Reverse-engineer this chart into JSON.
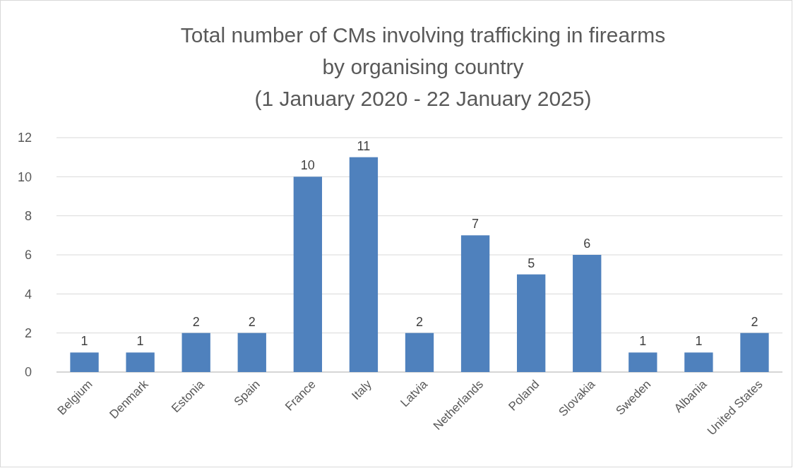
{
  "chart_data": {
    "type": "bar",
    "title": "Total number of CMs involving trafficking in firearms by organising country",
    "subtitle": "(1 January 2020 - 22 January 2025)",
    "categories": [
      "Belgium",
      "Denmark",
      "Estonia",
      "Spain",
      "France",
      "Italy",
      "Latvia",
      "Netherlands",
      "Poland",
      "Slovakia",
      "Sweden",
      "Albania",
      "United States"
    ],
    "values": [
      1,
      1,
      2,
      2,
      10,
      11,
      2,
      7,
      5,
      6,
      1,
      1,
      2
    ],
    "color": "#4f81bd",
    "ylim": [
      0,
      12
    ],
    "yticks": [
      0,
      2,
      4,
      6,
      8,
      10,
      12
    ],
    "grid": "y",
    "data_labels": true
  }
}
